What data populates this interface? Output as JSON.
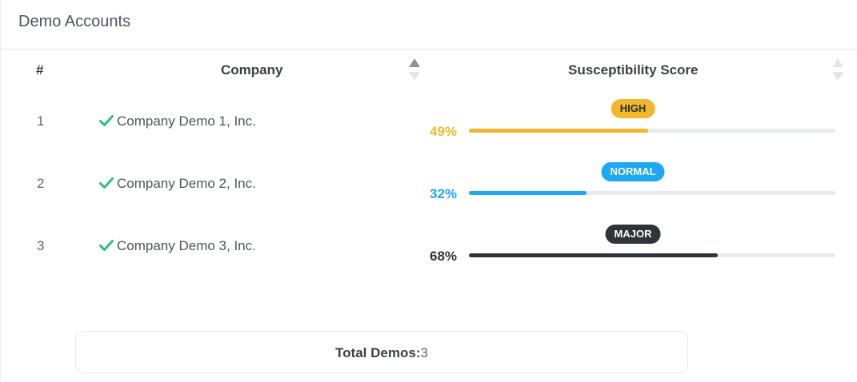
{
  "header": {
    "title": "Demo Accounts"
  },
  "table": {
    "columns": {
      "num": "#",
      "company": "Company",
      "score": "Susceptibility Score"
    },
    "rows": [
      {
        "num": "1",
        "company": "Company Demo 1, Inc.",
        "percent": "49%",
        "percent_value": 49,
        "badge": "HIGH",
        "color": "#f1b82d",
        "badge_text_color": "#2b2f36"
      },
      {
        "num": "2",
        "company": "Company Demo 2, Inc.",
        "percent": "32%",
        "percent_value": 32,
        "badge": "NORMAL",
        "color": "#1da9f2",
        "badge_text_color": "#ffffff"
      },
      {
        "num": "3",
        "company": "Company Demo 3, Inc.",
        "percent": "68%",
        "percent_value": 68,
        "badge": "MAJOR",
        "color": "#2f343b",
        "badge_text_color": "#ffffff"
      }
    ]
  },
  "summary": {
    "label": "Total Demos:",
    "value": "3"
  },
  "icons": {
    "row_status": "check-icon",
    "sort": "sort-icon"
  },
  "colors": {
    "check": "#2fbf71"
  }
}
